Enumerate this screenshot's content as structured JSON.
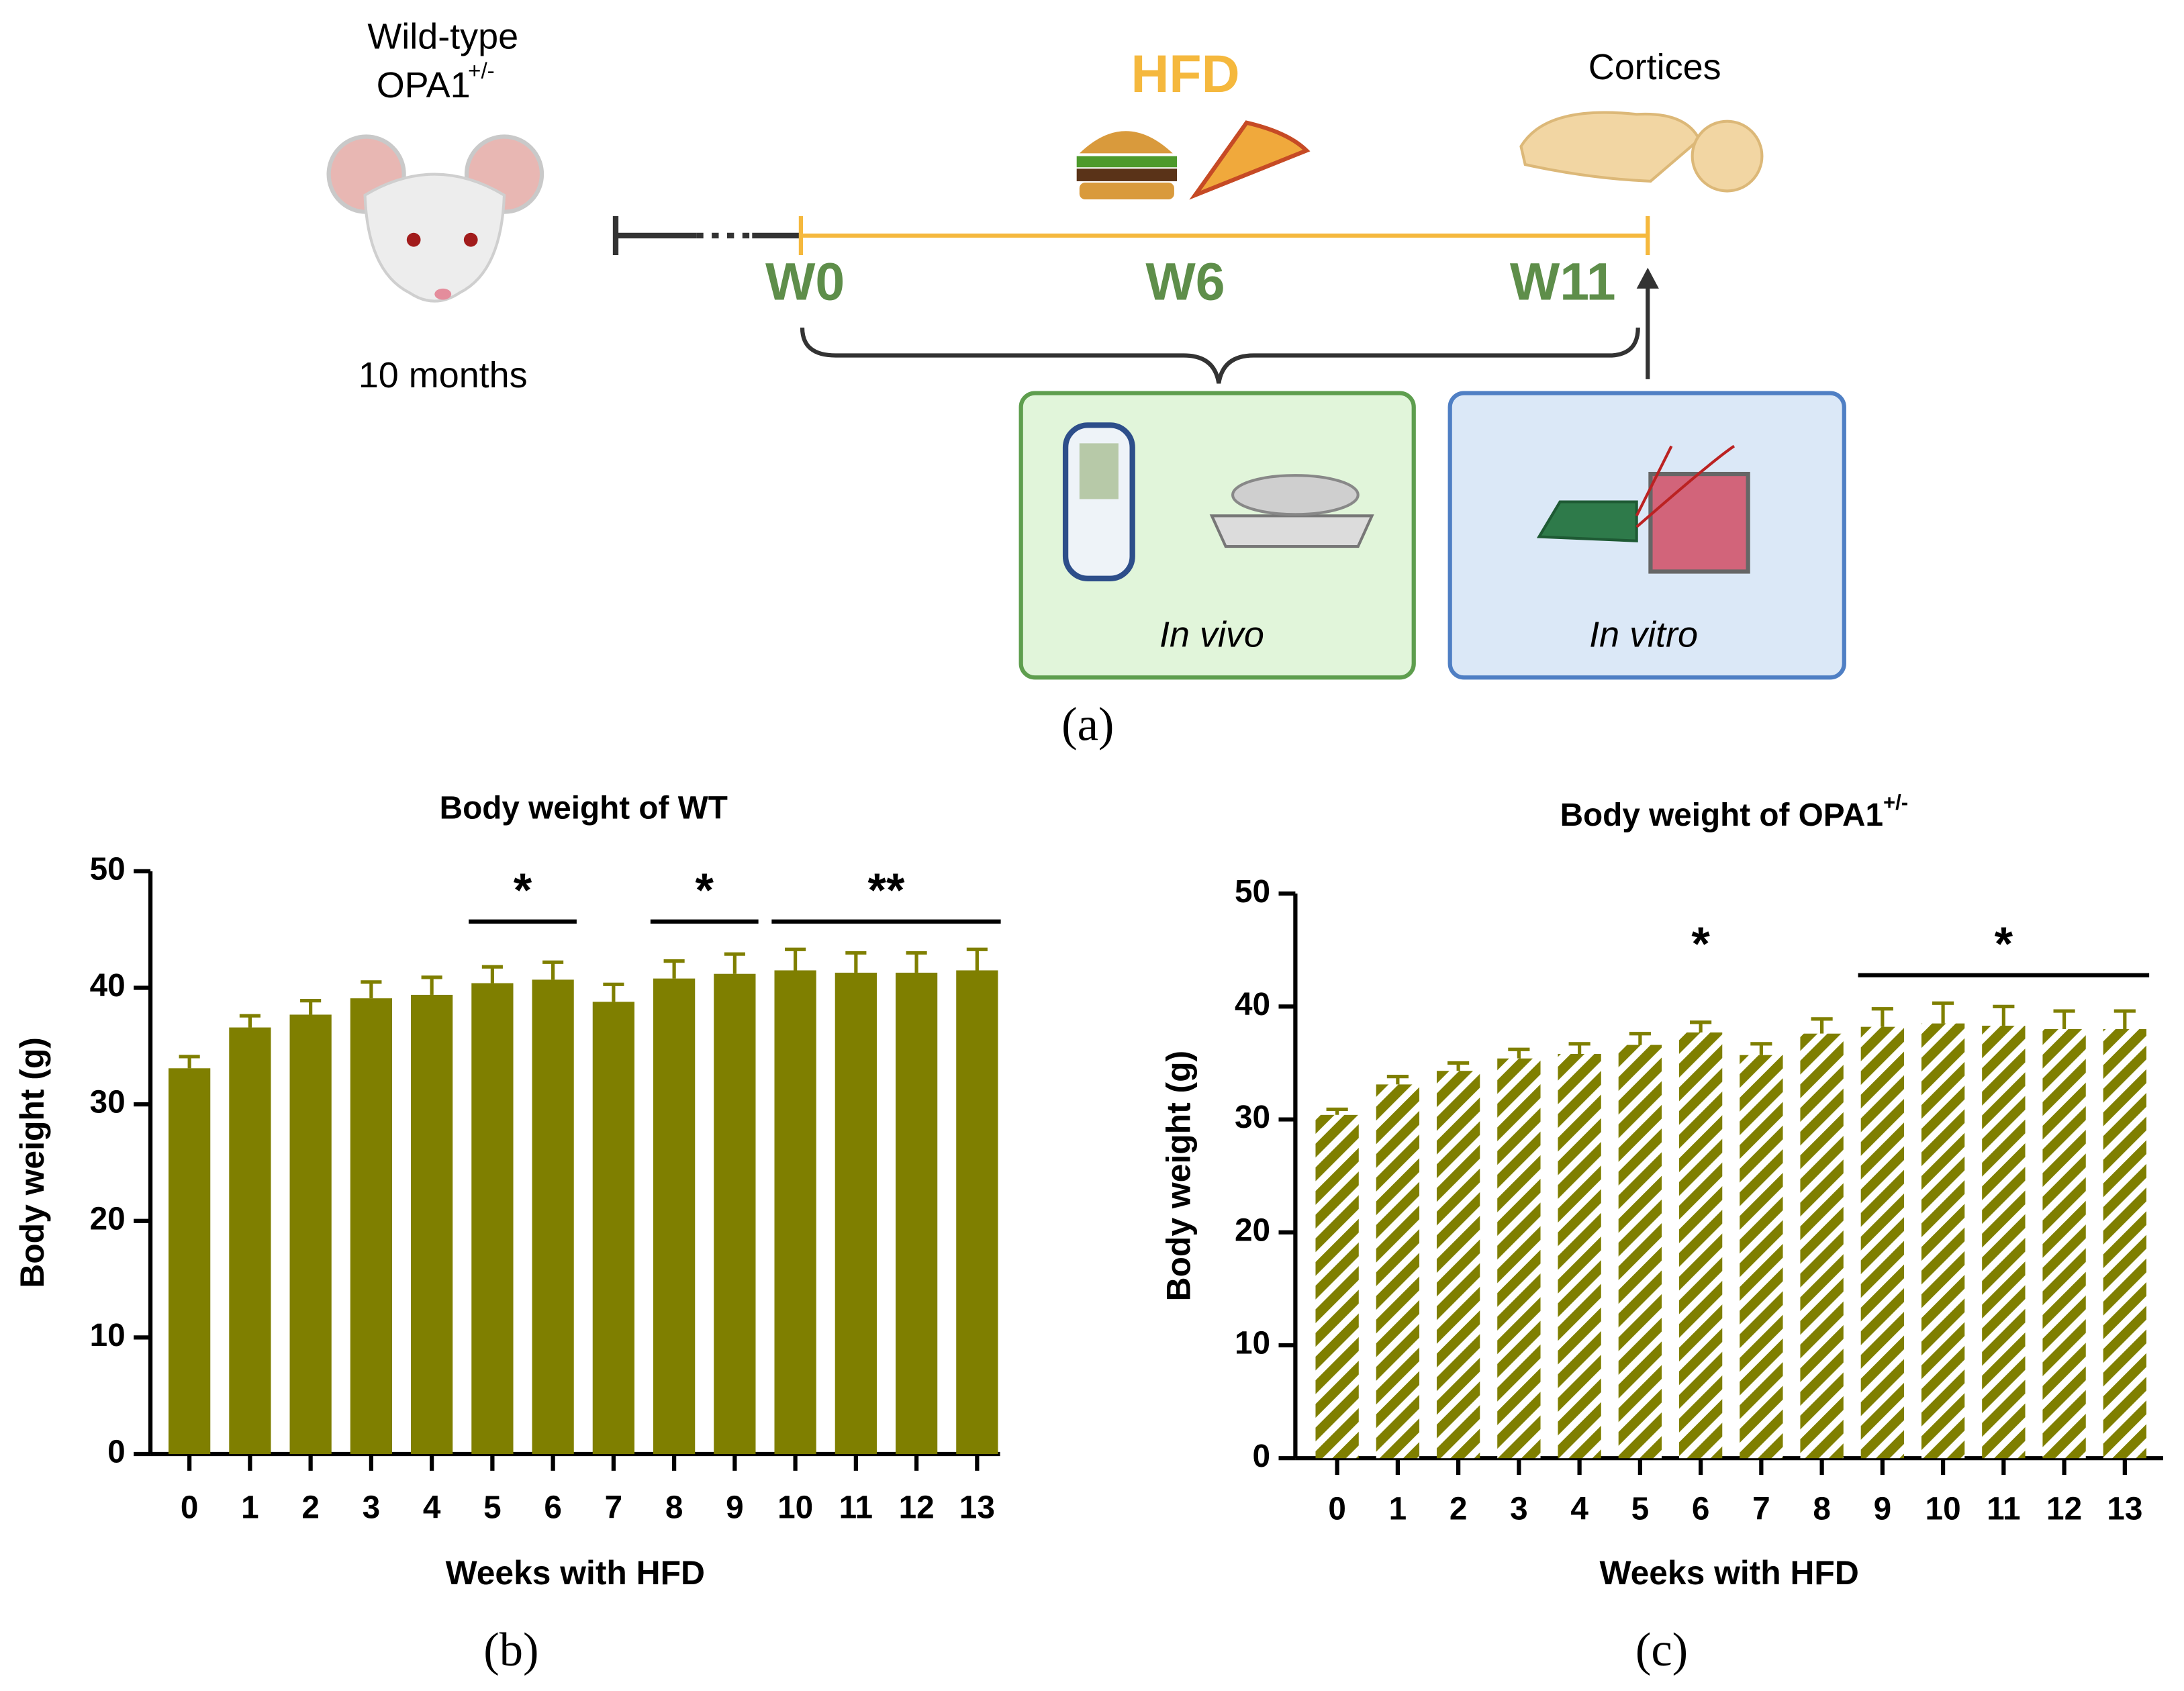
{
  "diagram": {
    "strain_line1": "Wild-type",
    "strain_gene": "OPA1",
    "strain_sup": "+/-",
    "age": "10 months",
    "diet": "HFD",
    "tissue": "Cortices",
    "timepoints": [
      "W0",
      "W6",
      "W11"
    ],
    "in_vivo": "In vivo",
    "in_vitro": "In vitro",
    "panel": "(a)"
  },
  "chart_data": [
    {
      "type": "bar",
      "title": "Body weight  of WT",
      "xlabel": "Weeks with HFD",
      "ylabel": "Body weight (g)",
      "panel": "(b)",
      "categories": [
        "0",
        "1",
        "2",
        "3",
        "4",
        "5",
        "6",
        "7",
        "8",
        "9",
        "10",
        "11",
        "12",
        "13"
      ],
      "values": [
        33.1,
        36.6,
        37.7,
        39.1,
        39.4,
        40.4,
        40.7,
        38.8,
        40.8,
        41.2,
        41.5,
        41.3,
        41.3,
        41.5
      ],
      "errors": [
        1.0,
        1.0,
        1.2,
        1.4,
        1.5,
        1.4,
        1.5,
        1.5,
        1.5,
        1.7,
        1.8,
        1.7,
        1.7,
        1.8
      ],
      "color": "#7f7f00",
      "hatch": false,
      "ylim": [
        0,
        50
      ],
      "yticks": [
        0,
        10,
        20,
        30,
        40,
        50
      ],
      "grid": false,
      "annotations": [
        {
          "text": "*",
          "span": [
            "5",
            "6"
          ]
        },
        {
          "text": "*",
          "span": [
            "8",
            "9"
          ]
        },
        {
          "text": "**",
          "span": [
            "10",
            "13"
          ]
        }
      ]
    },
    {
      "type": "bar",
      "title": "Body weight of OPA1",
      "title_sup": "+/-",
      "xlabel": "Weeks with HFD",
      "ylabel": "Body weight (g)",
      "panel": "(c)",
      "categories": [
        "0",
        "1",
        "2",
        "3",
        "4",
        "5",
        "6",
        "7",
        "8",
        "9",
        "10",
        "11",
        "12",
        "13"
      ],
      "values": [
        30.4,
        33.1,
        34.3,
        35.4,
        35.8,
        36.6,
        37.7,
        35.7,
        37.6,
        38.2,
        38.5,
        38.3,
        38.0,
        38.0
      ],
      "errors": [
        0.5,
        0.7,
        0.7,
        0.8,
        0.9,
        1.0,
        0.9,
        1.0,
        1.3,
        1.6,
        1.8,
        1.7,
        1.6,
        1.6
      ],
      "color": "#7f7f00",
      "hatch": true,
      "ylim": [
        0,
        50
      ],
      "yticks": [
        0,
        10,
        20,
        30,
        40,
        50
      ],
      "grid": false,
      "annotations": [
        {
          "text": "*",
          "span": [
            "6"
          ]
        },
        {
          "text": "*",
          "span": [
            "9",
            "13"
          ]
        }
      ]
    }
  ]
}
